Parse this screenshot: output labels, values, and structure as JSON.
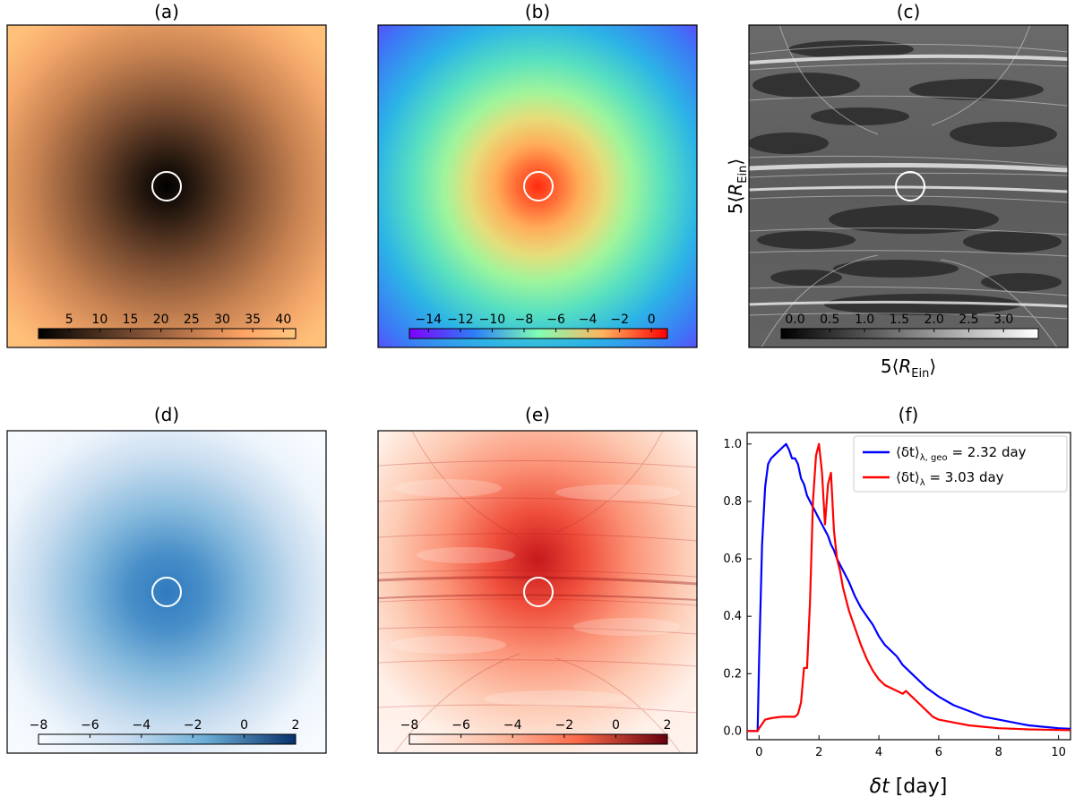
{
  "panels": [
    {
      "id": "a",
      "title": "(a)",
      "colormap": "copper",
      "colorbar": {
        "ticks": [
          "5",
          "10",
          "15",
          "20",
          "25",
          "30",
          "35",
          "40"
        ],
        "min": 0,
        "max": 42,
        "values": [
          5,
          10,
          15,
          20,
          25,
          30,
          35,
          40
        ]
      }
    },
    {
      "id": "b",
      "title": "(b)",
      "colormap": "rainbow",
      "colorbar": {
        "ticks": [
          "−14",
          "−12",
          "−10",
          "−8",
          "−6",
          "−4",
          "−2",
          "0"
        ],
        "min": -15.2,
        "max": 1.0,
        "values": [
          -14,
          -12,
          -10,
          -8,
          -6,
          -4,
          -2,
          0
        ]
      }
    },
    {
      "id": "c",
      "title": "(c)",
      "colormap": "gray",
      "ylabel": "5⟨R Ein⟩",
      "xlabel": "5⟨R Ein⟩",
      "colorbar": {
        "ticks": [
          "0.0",
          "0.5",
          "1.0",
          "1.5",
          "2.0",
          "2.5",
          "3.0"
        ],
        "min": -0.2,
        "max": 3.5,
        "values": [
          0.0,
          0.5,
          1.0,
          1.5,
          2.0,
          2.5,
          3.0
        ]
      }
    },
    {
      "id": "d",
      "title": "(d)",
      "colormap": "Blues",
      "colorbar": {
        "ticks": [
          "−8",
          "−6",
          "−4",
          "−2",
          "0",
          "2"
        ],
        "min": -8,
        "max": 2,
        "values": [
          -8,
          -6,
          -4,
          -2,
          0,
          2
        ]
      }
    },
    {
      "id": "e",
      "title": "(e)",
      "colormap": "Reds",
      "colorbar": {
        "ticks": [
          "−8",
          "−6",
          "−4",
          "−2",
          "0",
          "2"
        ],
        "min": -8,
        "max": 2,
        "values": [
          -8,
          -6,
          -4,
          -2,
          0,
          2
        ]
      }
    }
  ],
  "axis_label_text": {
    "five": "5",
    "open": "⟨",
    "R": "R",
    "sub": "Ein",
    "close": "⟩"
  },
  "chart_data": {
    "type": "line",
    "title": "(f)",
    "xlabel_symbol": "δt",
    "xlabel_unit": " [day]",
    "xlim": [
      -0.4,
      10.4
    ],
    "ylim": [
      -0.03,
      1.04
    ],
    "xticks": [
      0,
      2,
      4,
      6,
      8,
      10
    ],
    "yticks": [
      0.0,
      0.2,
      0.4,
      0.6,
      0.8,
      1.0
    ],
    "ytick_labels": [
      "0.0",
      "0.2",
      "0.4",
      "0.6",
      "0.8",
      "1.0"
    ],
    "legend_position": "top-right",
    "series": [
      {
        "name": "⟨δt⟩λ, geo = 2.32 day",
        "legend_main": "⟨δt⟩",
        "legend_sub": "λ, geo",
        "legend_value": " =  2.32 day",
        "color": "#0000ff",
        "x": [
          -0.4,
          -0.05,
          0.0,
          0.1,
          0.2,
          0.3,
          0.4,
          0.5,
          0.6,
          0.7,
          0.8,
          0.9,
          1.0,
          1.1,
          1.2,
          1.3,
          1.4,
          1.5,
          1.6,
          1.7,
          1.8,
          1.9,
          2.0,
          2.1,
          2.2,
          2.3,
          2.4,
          2.5,
          2.6,
          2.8,
          3.0,
          3.2,
          3.4,
          3.6,
          3.8,
          4.0,
          4.2,
          4.4,
          4.6,
          4.8,
          5.0,
          5.3,
          5.6,
          6.0,
          6.5,
          7.0,
          7.5,
          8.0,
          8.5,
          9.0,
          9.5,
          10.0,
          10.4
        ],
        "y": [
          0.0,
          0.0,
          0.25,
          0.65,
          0.85,
          0.93,
          0.95,
          0.96,
          0.97,
          0.98,
          0.99,
          1.0,
          0.98,
          0.95,
          0.95,
          0.93,
          0.88,
          0.86,
          0.82,
          0.8,
          0.78,
          0.76,
          0.74,
          0.72,
          0.7,
          0.68,
          0.65,
          0.63,
          0.6,
          0.56,
          0.52,
          0.47,
          0.43,
          0.4,
          0.37,
          0.33,
          0.3,
          0.28,
          0.26,
          0.23,
          0.21,
          0.18,
          0.15,
          0.12,
          0.09,
          0.07,
          0.05,
          0.04,
          0.03,
          0.02,
          0.015,
          0.01,
          0.008
        ]
      },
      {
        "name": "⟨δt⟩λ = 3.03 day",
        "legend_main": "⟨δt⟩",
        "legend_sub": "λ",
        "legend_value": " =  3.03 day",
        "color": "#ff0000",
        "x": [
          -0.4,
          -0.05,
          0.0,
          0.2,
          0.4,
          0.6,
          0.8,
          1.0,
          1.2,
          1.3,
          1.4,
          1.5,
          1.6,
          1.7,
          1.8,
          1.9,
          2.0,
          2.1,
          2.2,
          2.3,
          2.4,
          2.5,
          2.6,
          2.7,
          2.8,
          3.0,
          3.2,
          3.4,
          3.6,
          3.8,
          4.0,
          4.2,
          4.4,
          4.6,
          4.8,
          4.9,
          5.0,
          5.2,
          5.4,
          5.6,
          5.8,
          6.0,
          6.5,
          7.0,
          7.5,
          8.0,
          8.5,
          9.0,
          9.5,
          10.0,
          10.4
        ],
        "y": [
          0.0,
          0.0,
          0.01,
          0.04,
          0.045,
          0.048,
          0.05,
          0.05,
          0.05,
          0.06,
          0.1,
          0.22,
          0.22,
          0.45,
          0.8,
          0.96,
          1.0,
          0.9,
          0.72,
          0.86,
          0.9,
          0.7,
          0.6,
          0.56,
          0.5,
          0.42,
          0.36,
          0.3,
          0.25,
          0.21,
          0.18,
          0.16,
          0.15,
          0.14,
          0.13,
          0.14,
          0.13,
          0.11,
          0.09,
          0.07,
          0.05,
          0.04,
          0.03,
          0.02,
          0.015,
          0.01,
          0.008,
          0.006,
          0.005,
          0.004,
          0.003
        ]
      }
    ]
  }
}
